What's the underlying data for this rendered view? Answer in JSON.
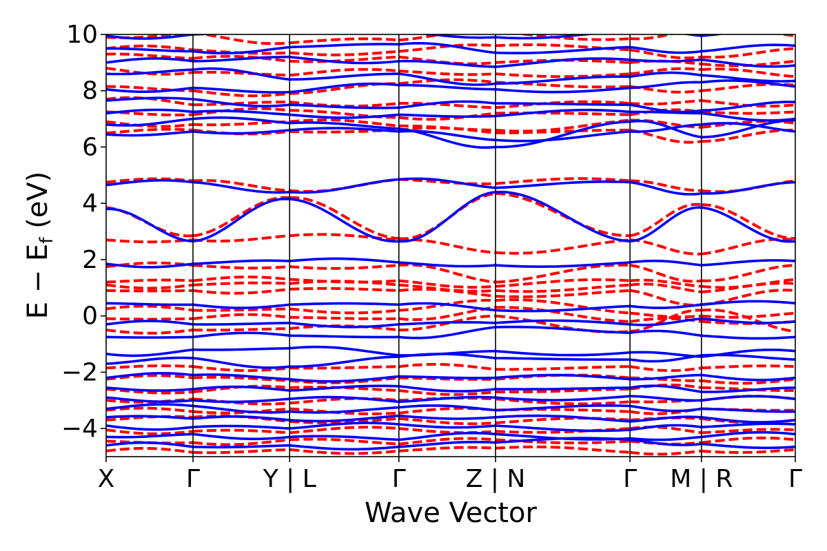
{
  "chart_data": {
    "type": "line",
    "title": "",
    "xlabel": "Wave Vector",
    "ylabel": "E − E",
    "ylabel_sub": "f",
    "ylabel_unit": " (eV)",
    "ylim": [
      -5,
      10
    ],
    "y_ticks": [
      {
        "value": 10,
        "label": "10"
      },
      {
        "value": 8,
        "label": "8"
      },
      {
        "value": 6,
        "label": "6"
      },
      {
        "value": 4,
        "label": "4"
      },
      {
        "value": 2,
        "label": "2"
      },
      {
        "value": 0,
        "label": "0"
      },
      {
        "value": -2,
        "label": "−2"
      },
      {
        "value": -4,
        "label": "−4"
      }
    ],
    "kpath": {
      "segments": [
        {
          "from": "X",
          "to": "Γ",
          "length": 3.1
        },
        {
          "from": "Γ",
          "to": "Y",
          "length": 3.45
        },
        {
          "from": "L",
          "to": "Γ",
          "length": 3.9
        },
        {
          "from": "Γ",
          "to": "Z",
          "length": 3.45
        },
        {
          "from": "N",
          "to": "Γ",
          "length": 4.8
        },
        {
          "from": "Γ",
          "to": "M",
          "length": 2.55
        },
        {
          "from": "R",
          "to": "Γ",
          "length": 3.35
        }
      ],
      "tick_labels": [
        "X",
        "Γ",
        "Y | L",
        "Γ",
        "Z | N",
        "Γ",
        "M | R",
        "Γ"
      ]
    },
    "series": [
      {
        "style": "solid",
        "color": "#0000ff",
        "bands": [
          [
            -4.6,
            -4.65,
            -4.6,
            -4.65,
            -4.5,
            -4.4,
            -4.55,
            -4.65
          ],
          [
            -4.3,
            -4.2,
            -4.3,
            -4.4,
            -4.2,
            -4.35,
            -4.3,
            -4.2
          ],
          [
            -3.9,
            -3.95,
            -4.0,
            -3.85,
            -3.9,
            -4.05,
            -3.95,
            -3.85
          ],
          [
            -3.6,
            -3.65,
            -3.7,
            -3.55,
            -3.6,
            -3.75,
            -3.6,
            -3.7
          ],
          [
            -3.3,
            -3.2,
            -3.4,
            -3.25,
            -3.35,
            -3.2,
            -3.3,
            -3.4
          ],
          [
            -2.9,
            -3.0,
            -2.95,
            -3.05,
            -2.9,
            -2.85,
            -3.0,
            -2.95
          ],
          [
            -2.55,
            -2.6,
            -2.65,
            -2.5,
            -2.6,
            -2.55,
            -2.7,
            -2.55
          ],
          [
            -2.2,
            -2.1,
            -2.25,
            -2.15,
            -2.2,
            -2.25,
            -2.1,
            -2.2
          ],
          [
            -1.7,
            -1.5,
            -1.8,
            -1.45,
            -1.5,
            -1.55,
            -1.4,
            -1.55
          ],
          [
            -1.35,
            -1.2,
            -1.15,
            -1.4,
            -1.25,
            -1.3,
            -1.45,
            -1.25
          ],
          [
            -0.75,
            -0.75,
            -0.7,
            -0.75,
            -0.4,
            -0.6,
            -0.7,
            -0.75
          ],
          [
            -0.3,
            -0.3,
            -0.25,
            -0.3,
            -0.25,
            -0.3,
            -0.1,
            -0.2
          ],
          [
            0.45,
            0.4,
            0.4,
            0.4,
            0.2,
            0.35,
            0.4,
            0.45
          ],
          [
            1.85,
            1.85,
            1.95,
            1.9,
            1.8,
            1.9,
            1.8,
            1.95
          ],
          [
            3.8,
            2.65,
            4.15,
            2.65,
            4.4,
            2.65,
            3.85,
            2.65
          ],
          [
            4.65,
            4.75,
            4.4,
            4.85,
            4.55,
            4.75,
            4.35,
            4.75
          ],
          [
            6.45,
            6.55,
            6.6,
            6.55,
            6.25,
            6.55,
            6.8,
            6.55
          ],
          [
            6.8,
            7.0,
            6.85,
            6.65,
            6.0,
            6.9,
            6.35,
            6.95
          ],
          [
            7.2,
            7.25,
            7.15,
            7.15,
            7.1,
            7.25,
            7.2,
            7.0
          ],
          [
            7.65,
            7.7,
            7.5,
            7.4,
            7.55,
            7.5,
            7.3,
            7.6
          ],
          [
            8.05,
            8.1,
            7.95,
            8.2,
            8.05,
            8.1,
            8.3,
            8.15
          ],
          [
            8.6,
            8.75,
            8.4,
            8.6,
            8.25,
            8.5,
            8.55,
            8.35
          ],
          [
            9.0,
            9.05,
            9.2,
            9.05,
            8.85,
            9.1,
            9.1,
            8.9
          ],
          [
            9.5,
            9.4,
            9.55,
            9.65,
            9.35,
            9.55,
            9.4,
            9.6
          ],
          [
            9.95,
            10.0,
            10.2,
            10.1,
            9.9,
            10.15,
            9.95,
            10.2
          ]
        ]
      },
      {
        "style": "dashed",
        "color": "#ff0000",
        "bands": [
          [
            -4.8,
            -4.85,
            -4.75,
            -4.8,
            -4.7,
            -4.85,
            -4.8,
            -4.75
          ],
          [
            -4.45,
            -4.5,
            -4.4,
            -4.55,
            -4.4,
            -4.45,
            -4.5,
            -4.4
          ],
          [
            -4.05,
            -4.1,
            -4.15,
            -4.0,
            -4.1,
            -4.0,
            -4.15,
            -4.05
          ],
          [
            -3.7,
            -3.6,
            -3.75,
            -3.65,
            -3.8,
            -3.7,
            -3.65,
            -3.7
          ],
          [
            -3.35,
            -3.4,
            -3.3,
            -3.45,
            -3.35,
            -3.4,
            -3.3,
            -3.35
          ],
          [
            -3.0,
            -2.95,
            -3.1,
            -3.0,
            -2.95,
            -3.05,
            -3.0,
            -2.95
          ],
          [
            -2.6,
            -2.7,
            -2.55,
            -2.65,
            -2.7,
            -2.6,
            -2.55,
            -2.65
          ],
          [
            -2.25,
            -2.2,
            -2.3,
            -2.2,
            -2.25,
            -2.2,
            -2.3,
            -2.25
          ],
          [
            -1.85,
            -1.8,
            -1.85,
            -1.8,
            -1.9,
            -1.8,
            -1.85,
            -1.8
          ],
          [
            -0.5,
            -0.5,
            -0.45,
            -0.5,
            0.0,
            -0.55,
            0.2,
            -0.55
          ],
          [
            -0.1,
            -0.1,
            -0.05,
            -0.1,
            0.3,
            -0.2,
            -0.2,
            -0.2
          ],
          [
            0.25,
            0.2,
            0.25,
            0.2,
            0.55,
            0.1,
            0.0,
            0.1
          ],
          [
            0.9,
            0.9,
            0.95,
            0.9,
            0.7,
            0.9,
            0.4,
            0.9
          ],
          [
            1.1,
            1.1,
            1.15,
            1.1,
            0.9,
            1.1,
            0.85,
            1.15
          ],
          [
            1.2,
            1.25,
            1.3,
            1.25,
            1.05,
            1.25,
            1.05,
            1.3
          ],
          [
            1.75,
            1.8,
            1.75,
            1.8,
            1.2,
            1.8,
            1.25,
            1.8
          ],
          [
            2.7,
            2.7,
            2.85,
            2.7,
            2.25,
            2.7,
            2.2,
            2.7
          ],
          [
            3.85,
            2.85,
            4.2,
            2.75,
            4.35,
            2.85,
            3.95,
            2.75
          ],
          [
            4.75,
            4.8,
            4.45,
            4.85,
            4.7,
            4.8,
            4.45,
            4.8
          ],
          [
            6.5,
            6.6,
            6.55,
            6.6,
            6.5,
            6.6,
            6.2,
            6.6
          ],
          [
            6.9,
            6.8,
            6.9,
            6.75,
            6.6,
            6.95,
            6.7,
            6.85
          ],
          [
            7.25,
            7.15,
            7.3,
            7.05,
            7.2,
            7.15,
            7.25,
            7.25
          ],
          [
            7.7,
            7.5,
            7.6,
            7.55,
            7.4,
            7.55,
            7.65,
            7.5
          ],
          [
            8.15,
            8.0,
            7.9,
            8.25,
            8.3,
            8.15,
            8.0,
            8.2
          ],
          [
            8.8,
            8.65,
            8.55,
            8.7,
            8.6,
            8.6,
            8.75,
            8.5
          ],
          [
            9.3,
            9.15,
            9.05,
            9.2,
            9.0,
            9.0,
            8.95,
            9.05
          ],
          [
            9.5,
            9.45,
            9.35,
            9.4,
            9.6,
            9.45,
            9.2,
            9.5
          ],
          [
            9.9,
            10.05,
            9.7,
            9.8,
            10.1,
            9.85,
            10.2,
            9.95
          ]
        ]
      }
    ]
  }
}
